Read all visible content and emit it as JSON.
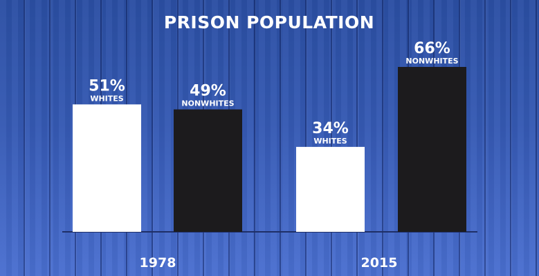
{
  "chart_data": {
    "type": "bar",
    "title": "PRISON POPULATION",
    "categories": [
      "1978",
      "2015"
    ],
    "series": [
      {
        "name": "WHITES",
        "values": [
          51,
          34
        ],
        "color": "#ffffff"
      },
      {
        "name": "NONWHITES",
        "values": [
          49,
          66
        ],
        "color": "#1c1b1d"
      }
    ],
    "value_labels": [
      [
        "51%",
        "34%"
      ],
      [
        "49%",
        "66%"
      ]
    ],
    "ylim": [
      0,
      100
    ],
    "grid": false,
    "legend": "none",
    "colors": {
      "background": "#3559b3",
      "baseline": "#1f2f66",
      "text": "#ffffff"
    }
  }
}
